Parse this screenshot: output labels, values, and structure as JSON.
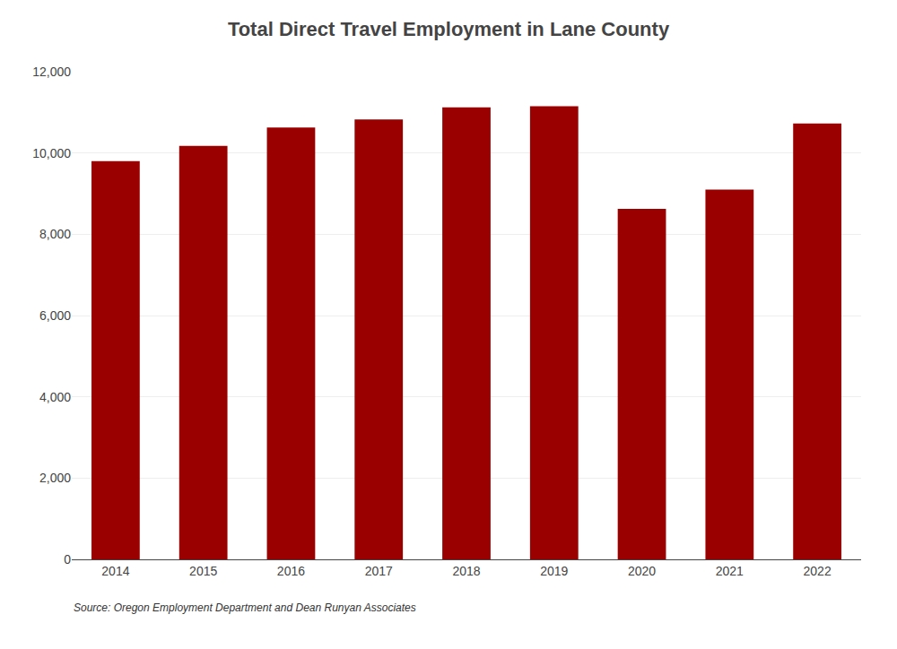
{
  "chart_data": {
    "type": "bar",
    "title": "Total Direct Travel Employment in Lane County",
    "categories": [
      "2014",
      "2015",
      "2016",
      "2017",
      "2018",
      "2019",
      "2020",
      "2021",
      "2022"
    ],
    "values": [
      9800,
      10175,
      10625,
      10825,
      11125,
      11150,
      8625,
      9100,
      10725
    ],
    "color": "#9B0000",
    "ylim": [
      0,
      12000
    ],
    "yticks": [
      0,
      {
        "value": 2000,
        "label": "2,000"
      },
      {
        "value": 4000,
        "label": "4,000"
      },
      {
        "value": 6000,
        "label": "6,000"
      },
      {
        "value": 8000,
        "label": "8,000"
      },
      {
        "value": 10000,
        "label": "10,000"
      },
      {
        "value": 12000,
        "label": "12,000"
      }
    ],
    "grid": true,
    "annotations": [
      "Source: Oregon Employment Department and Dean Runyan Associates"
    ]
  }
}
